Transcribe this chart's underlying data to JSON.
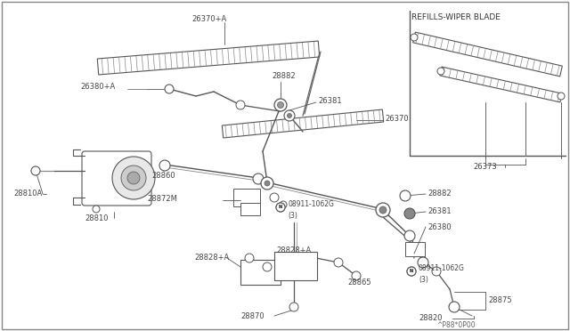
{
  "bg_color": "#ffffff",
  "line_color": "#555555",
  "text_color": "#444444",
  "footnote": "^P88*0P00",
  "refill_title": "REFILLS-WIPER BLADE",
  "label_26370A": "26370+A",
  "label_28882t": "28882",
  "label_26381t": "26381",
  "label_26380A": "26380+A",
  "label_26370": "26370",
  "label_28810A": "28810A",
  "label_28810": "28810",
  "label_28860": "28860",
  "label_28872M": "28872M",
  "label_N1": "N",
  "label_08911t": "08911-1062G",
  "label_3t": "(3)",
  "label_28828AL": "28828+A",
  "label_28828AR": "28828+A",
  "label_28870": "28870",
  "label_28865": "28865",
  "label_28882b": "28882",
  "label_26381b": "26381",
  "label_26380b": "26380",
  "label_N2": "N",
  "label_08911b": "08911-1062G",
  "label_3b": "(3)",
  "label_28875": "28875",
  "label_28820": "28820",
  "label_26373": "26373"
}
